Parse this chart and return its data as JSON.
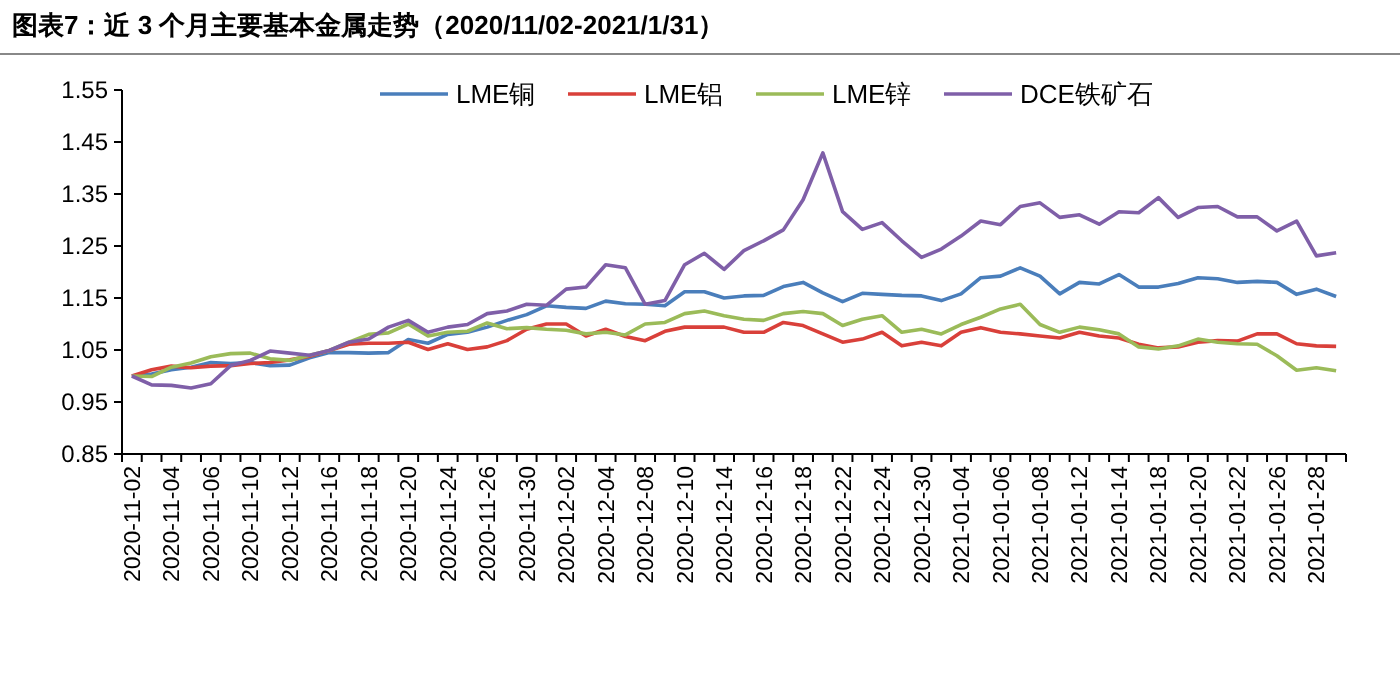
{
  "chart_data": {
    "type": "line",
    "title": "图表7：近 3 个月主要基本金属走势（2020/11/02-2021/1/31）",
    "categories": [
      "2020-11-02",
      null,
      "2020-11-04",
      null,
      "2020-11-06",
      null,
      "2020-11-10",
      null,
      "2020-11-12",
      null,
      "2020-11-16",
      null,
      "2020-11-18",
      null,
      "2020-11-20",
      null,
      "2020-11-24",
      null,
      "2020-11-26",
      null,
      "2020-11-30",
      null,
      "2020-12-02",
      null,
      "2020-12-04",
      null,
      "2020-12-08",
      null,
      "2020-12-10",
      null,
      "2020-12-14",
      null,
      "2020-12-16",
      null,
      "2020-12-18",
      null,
      "2020-12-22",
      null,
      "2020-12-24",
      null,
      "2020-12-30",
      null,
      "2021-01-04",
      null,
      "2021-01-06",
      null,
      "2021-01-08",
      null,
      "2021-01-12",
      null,
      "2021-01-14",
      null,
      "2021-01-18",
      null,
      "2021-01-20",
      null,
      "2021-01-22",
      null,
      "2021-01-26",
      null,
      "2021-01-28",
      null
    ],
    "series": [
      {
        "name": "LME铜",
        "color": "#4a7ebb",
        "values": [
          1.0,
          1.004,
          1.012,
          1.017,
          1.026,
          1.024,
          1.026,
          1.02,
          1.021,
          1.035,
          1.045,
          1.045,
          1.044,
          1.045,
          1.07,
          1.063,
          1.08,
          1.084,
          1.094,
          1.107,
          1.118,
          1.135,
          1.132,
          1.13,
          1.144,
          1.139,
          1.138,
          1.135,
          1.162,
          1.162,
          1.15,
          1.154,
          1.155,
          1.172,
          1.18,
          1.16,
          1.143,
          1.159,
          1.157,
          1.155,
          1.154,
          1.145,
          1.158,
          1.189,
          1.192,
          1.208,
          1.192,
          1.158,
          1.18,
          1.177,
          1.195,
          1.171,
          1.171,
          1.178,
          1.189,
          1.187,
          1.18,
          1.182,
          1.18,
          1.157,
          1.167,
          1.153
        ]
      },
      {
        "name": "LME铝",
        "color": "#d9403a",
        "values": [
          1.0,
          1.012,
          1.019,
          1.016,
          1.019,
          1.02,
          1.024,
          1.026,
          1.031,
          1.038,
          1.049,
          1.061,
          1.063,
          1.063,
          1.065,
          1.051,
          1.062,
          1.051,
          1.056,
          1.068,
          1.09,
          1.1,
          1.1,
          1.077,
          1.09,
          1.076,
          1.068,
          1.086,
          1.094,
          1.094,
          1.094,
          1.084,
          1.084,
          1.103,
          1.097,
          1.081,
          1.065,
          1.071,
          1.084,
          1.058,
          1.065,
          1.058,
          1.084,
          1.093,
          1.084,
          1.081,
          1.077,
          1.073,
          1.084,
          1.077,
          1.073,
          1.061,
          1.054,
          1.056,
          1.065,
          1.068,
          1.067,
          1.081,
          1.081,
          1.062,
          1.058,
          1.057
        ]
      },
      {
        "name": "LME锌",
        "color": "#9bbb59",
        "values": [
          1.0,
          0.999,
          1.017,
          1.025,
          1.037,
          1.043,
          1.044,
          1.033,
          1.03,
          1.04,
          1.049,
          1.065,
          1.08,
          1.083,
          1.1,
          1.077,
          1.084,
          1.086,
          1.102,
          1.091,
          1.093,
          1.09,
          1.088,
          1.081,
          1.084,
          1.079,
          1.1,
          1.103,
          1.12,
          1.125,
          1.116,
          1.109,
          1.107,
          1.12,
          1.124,
          1.12,
          1.097,
          1.109,
          1.116,
          1.084,
          1.09,
          1.081,
          1.099,
          1.113,
          1.129,
          1.138,
          1.099,
          1.084,
          1.094,
          1.089,
          1.081,
          1.056,
          1.052,
          1.058,
          1.071,
          1.065,
          1.062,
          1.061,
          1.039,
          1.011,
          1.016,
          1.01
        ]
      },
      {
        "name": "DCE铁矿石",
        "color": "#7f5fa8",
        "values": [
          1.0,
          0.983,
          0.982,
          0.977,
          0.985,
          1.02,
          1.03,
          1.048,
          1.044,
          1.04,
          1.049,
          1.065,
          1.071,
          1.094,
          1.107,
          1.084,
          1.094,
          1.099,
          1.12,
          1.125,
          1.138,
          1.136,
          1.167,
          1.171,
          1.214,
          1.208,
          1.138,
          1.145,
          1.214,
          1.236,
          1.205,
          1.241,
          1.26,
          1.281,
          1.339,
          1.429,
          1.316,
          1.282,
          1.295,
          1.26,
          1.228,
          1.244,
          1.269,
          1.298,
          1.291,
          1.326,
          1.333,
          1.305,
          1.31,
          1.292,
          1.316,
          1.314,
          1.343,
          1.305,
          1.324,
          1.326,
          1.306,
          1.306,
          1.279,
          1.298,
          1.231,
          1.237
        ]
      }
    ],
    "ylim": [
      0.85,
      1.55
    ],
    "yticks": [
      0.85,
      0.95,
      1.05,
      1.15,
      1.25,
      1.35,
      1.45,
      1.55
    ],
    "legend": "top",
    "marker": "none",
    "line_style": "solid"
  }
}
